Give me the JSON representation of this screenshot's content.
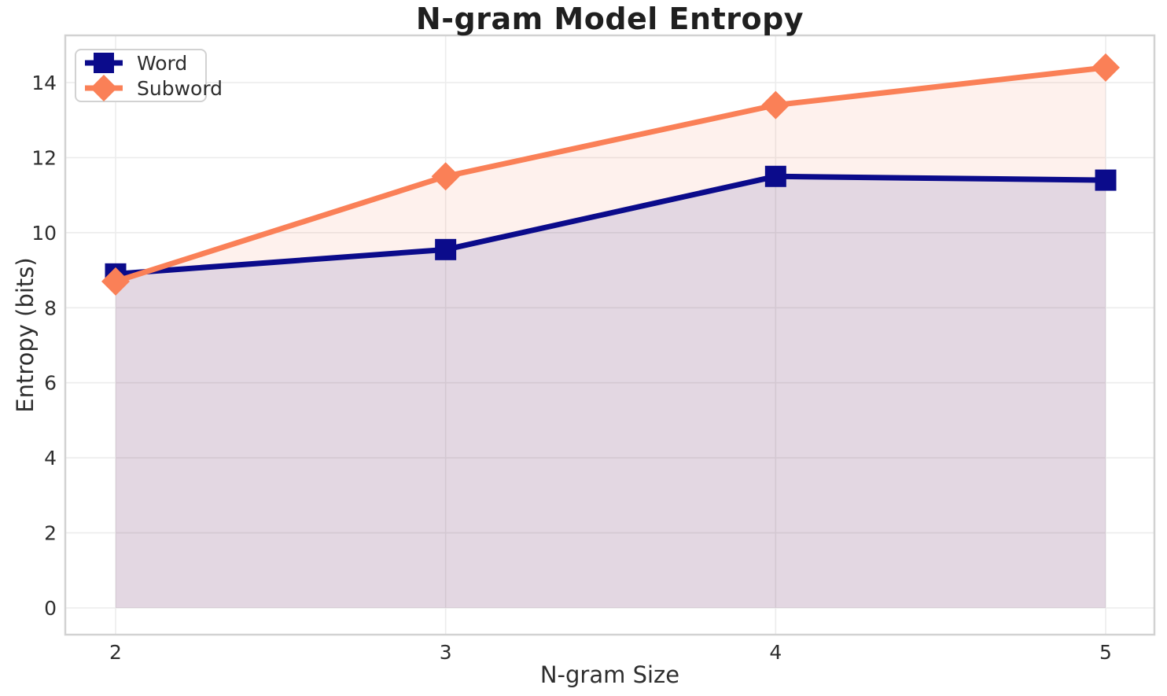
{
  "chart_data": {
    "type": "line",
    "title": "N-gram Model Entropy",
    "xlabel": "N-gram Size",
    "ylabel": "Entropy (bits)",
    "x": [
      2,
      3,
      4,
      5
    ],
    "xticks": [
      2,
      3,
      4,
      5
    ],
    "yticks": [
      0,
      2,
      4,
      6,
      8,
      10,
      12,
      14
    ],
    "xlim": [
      1.85,
      5.15
    ],
    "ylim": [
      -0.72,
      15.26
    ],
    "grid": true,
    "legend_position": "upper left",
    "fill_to_zero": true,
    "fill_alpha": 0.11,
    "series": [
      {
        "name": "Word",
        "color": "#0b0b8b",
        "marker": "square",
        "values": [
          8.9,
          9.55,
          11.5,
          11.4
        ]
      },
      {
        "name": "Subword",
        "color": "#fa8057",
        "marker": "diamond",
        "values": [
          8.7,
          11.5,
          13.4,
          14.4
        ]
      }
    ],
    "colors": {
      "background": "#ffffff",
      "grid": "#ececec",
      "spine": "#d2d2d2",
      "title": "#1f1f1f",
      "tick": "#2e2e2e"
    }
  }
}
